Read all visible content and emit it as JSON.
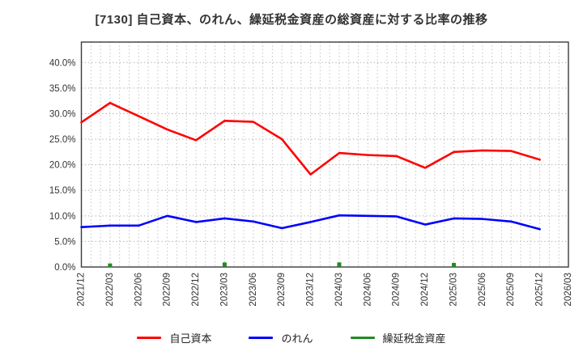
{
  "page": {
    "title": "[7130]  自己資本、のれん、繰延税金資産の総資産に対する比率の推移"
  },
  "chart_data": {
    "type": "line",
    "title": "[7130]  自己資本、のれん、繰延税金資産の総資産に対する比率の推移",
    "xlabel": "",
    "ylabel": "",
    "ylim": [
      0,
      44
    ],
    "y_major_step": 5,
    "grid": true,
    "minor_x_divisions_per_tick": 3,
    "legend_position": "bottom",
    "y_tick_labels": [
      "0.0%",
      "5.0%",
      "10.0%",
      "15.0%",
      "20.0%",
      "25.0%",
      "30.0%",
      "35.0%",
      "40.0%"
    ],
    "y_tick_values": [
      0,
      5,
      10,
      15,
      20,
      25,
      30,
      35,
      40
    ],
    "x_tick_labels": [
      "2021/12",
      "2022/03",
      "2022/06",
      "2022/09",
      "2022/12",
      "2023/03",
      "2023/06",
      "2023/09",
      "2023/12",
      "2024/03",
      "2024/06",
      "2024/09",
      "2024/12",
      "2025/03",
      "2025/06",
      "2025/09",
      "2025/12",
      "2026/03"
    ],
    "categories": [
      "2021/12",
      "2022/03",
      "2022/06",
      "2022/09",
      "2022/12",
      "2023/03",
      "2023/06",
      "2023/09",
      "2023/12",
      "2024/03",
      "2024/06",
      "2024/09",
      "2024/12",
      "2025/03",
      "2025/06",
      "2025/09",
      "2025/12"
    ],
    "series": [
      {
        "name": "自己資本",
        "color": "#ff0000",
        "marker": "none",
        "values": [
          28.3,
          32.1,
          29.5,
          26.9,
          24.8,
          28.6,
          28.4,
          25.0,
          18.1,
          22.3,
          21.9,
          21.7,
          19.4,
          22.5,
          22.8,
          22.7,
          21.0
        ]
      },
      {
        "name": "のれん",
        "color": "#0000ff",
        "marker": "none",
        "values": [
          7.8,
          8.1,
          8.1,
          10.0,
          8.8,
          9.5,
          8.9,
          7.6,
          8.8,
          10.1,
          10.0,
          9.9,
          8.3,
          9.5,
          9.4,
          8.9,
          7.4
        ]
      },
      {
        "name": "繰延税金資産",
        "color": "#228b22",
        "marker": "square",
        "values": [
          null,
          0.3,
          null,
          null,
          null,
          0.5,
          null,
          null,
          null,
          0.5,
          null,
          null,
          null,
          0.4,
          null,
          null,
          null
        ]
      }
    ],
    "colors": {
      "grid_horizontal": "#aaaaaa",
      "grid_vertical": "#bbbbbb",
      "plot_border": "#3c3c3c",
      "tick_label": "#333333",
      "title": "#333333",
      "background": "#ffffff"
    }
  }
}
